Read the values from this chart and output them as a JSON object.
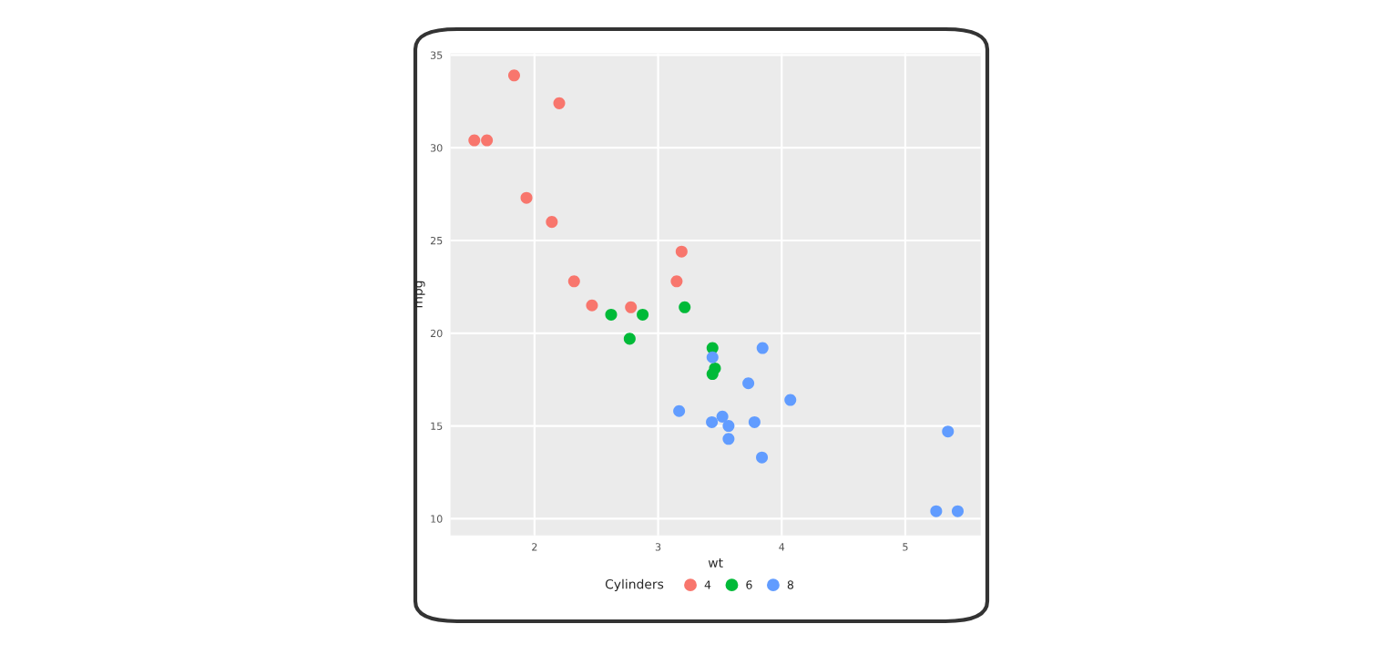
{
  "chart_data": {
    "type": "scatter",
    "xlabel": "wt",
    "ylabel": "mpg",
    "legend_title": "Cylinders",
    "legend": "bottom",
    "grid": true,
    "marker": "circle",
    "xlim": [
      1.32,
      5.61
    ],
    "ylim": [
      9.1,
      35.1
    ],
    "xticks": [
      2,
      3,
      4,
      5
    ],
    "yticks": [
      10,
      15,
      20,
      25,
      30,
      35
    ],
    "series": [
      {
        "name": "4",
        "color": "#f8766d",
        "x": [
          2.32,
          3.19,
          3.15,
          2.2,
          1.615,
          1.835,
          2.465,
          1.935,
          2.14,
          1.513,
          2.78
        ],
        "values": [
          22.8,
          24.4,
          22.8,
          32.4,
          30.4,
          33.9,
          21.5,
          27.3,
          26,
          30.4,
          21.4
        ]
      },
      {
        "name": "6",
        "color": "#00ba38",
        "x": [
          2.62,
          2.875,
          3.215,
          3.46,
          3.44,
          3.44,
          2.77
        ],
        "values": [
          21,
          21,
          21.4,
          18.1,
          19.2,
          17.8,
          19.7
        ]
      },
      {
        "name": "8",
        "color": "#619cff",
        "x": [
          3.44,
          3.57,
          4.07,
          3.73,
          3.78,
          5.25,
          5.424,
          5.345,
          3.52,
          3.435,
          3.84,
          3.845,
          3.17,
          3.57
        ],
        "values": [
          18.7,
          14.3,
          16.4,
          17.3,
          15.2,
          10.4,
          10.4,
          14.7,
          15.5,
          15.2,
          13.3,
          19.2,
          15.8,
          15.0
        ]
      }
    ]
  }
}
